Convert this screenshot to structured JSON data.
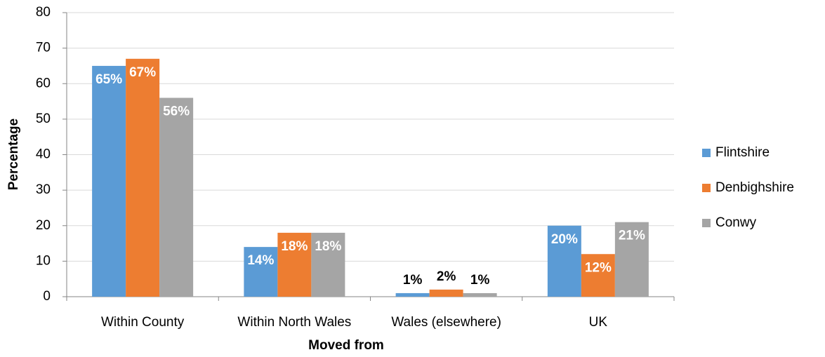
{
  "chart_data": {
    "type": "bar",
    "x_label": "Moved from",
    "y_label": "Percentage",
    "categories": [
      "Within County",
      "Within North Wales",
      "Wales (elsewhere)",
      "UK"
    ],
    "series": [
      {
        "name": "Flintshire",
        "color": "#5b9bd5",
        "values": [
          65,
          14,
          1,
          20
        ],
        "value_labels": [
          "65%",
          "14%",
          "1%",
          "20%"
        ]
      },
      {
        "name": "Denbighshire",
        "color": "#ed7d31",
        "values": [
          67,
          18,
          2,
          12
        ],
        "value_labels": [
          "67%",
          "18%",
          "2%",
          "12%"
        ]
      },
      {
        "name": "Conwy",
        "color": "#a5a5a5",
        "values": [
          56,
          18,
          1,
          21
        ],
        "value_labels": [
          "56%",
          "18%",
          "1%",
          "21%"
        ]
      }
    ],
    "ylim": [
      0,
      80
    ],
    "yticks": [
      0,
      10,
      20,
      30,
      40,
      50,
      60,
      70,
      80
    ],
    "grid": true,
    "legend": "right"
  }
}
